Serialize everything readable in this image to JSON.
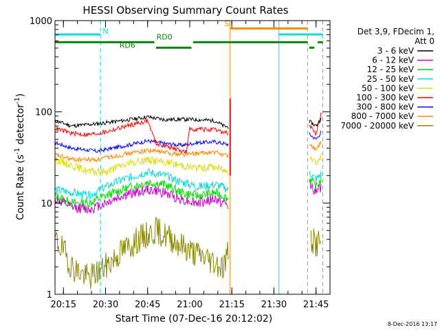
{
  "chart_data": {
    "type": "line",
    "title": "HESSI Observing Summary Count Rates",
    "xlabel": "Start Time (07-Dec-16 20:12:02)",
    "ylabel_main": "Count Rate (s",
    "ylabel_sup1": "-1",
    "ylabel_mid": " detector",
    "ylabel_sup2": "-1",
    "ylabel_end": ")",
    "y_scale": "log",
    "ylim": [
      1,
      1000
    ],
    "xlim": [
      20.2,
      21.833
    ],
    "x_ticks": [
      {
        "value": 20.25,
        "label": "20:15"
      },
      {
        "value": 20.5,
        "label": "20:30"
      },
      {
        "value": 20.75,
        "label": "20:45"
      },
      {
        "value": 21.0,
        "label": "21:00"
      },
      {
        "value": 21.25,
        "label": "21:15"
      },
      {
        "value": 21.5,
        "label": "21:30"
      },
      {
        "value": 21.75,
        "label": "21:45"
      }
    ],
    "y_ticks": [
      {
        "value": 1,
        "label": "1"
      },
      {
        "value": 10,
        "label": "10"
      },
      {
        "value": 100,
        "label": "100"
      },
      {
        "value": 1000,
        "label": "1000"
      }
    ],
    "legend_header": [
      "Det 3,9, FDecim 1,",
      "Att 0"
    ],
    "legend_position": "right",
    "series": [
      {
        "name": "3 - 6 keV",
        "color": "#000000",
        "seed": 11,
        "seg1": [
          [
            20.2,
            80
          ],
          [
            20.3,
            70
          ],
          [
            20.45,
            74
          ],
          [
            20.6,
            80
          ],
          [
            20.75,
            88
          ],
          [
            20.85,
            82
          ],
          [
            20.95,
            83
          ],
          [
            21.05,
            82
          ],
          [
            21.15,
            80
          ],
          [
            21.2,
            70
          ],
          [
            21.23,
            68
          ]
        ],
        "seg2": [
          [
            21.71,
            78
          ],
          [
            21.75,
            70
          ],
          [
            21.78,
            84
          ]
        ],
        "noise": 0.05
      },
      {
        "name": "6 - 12 keV",
        "color": "#cc00cc",
        "seed": 12,
        "seg1": [
          [
            20.2,
            11
          ],
          [
            20.3,
            9
          ],
          [
            20.4,
            8.5
          ],
          [
            20.5,
            10
          ],
          [
            20.6,
            12
          ],
          [
            20.75,
            14
          ],
          [
            20.85,
            13
          ],
          [
            20.95,
            11
          ],
          [
            21.05,
            10
          ],
          [
            21.15,
            11
          ],
          [
            21.2,
            10
          ],
          [
            21.23,
            9
          ]
        ],
        "seg2": [
          [
            21.71,
            17
          ],
          [
            21.75,
            13
          ],
          [
            21.78,
            15
          ]
        ],
        "noise": 0.13
      },
      {
        "name": "12 - 25 keV",
        "color": "#00dd00",
        "seed": 13,
        "seg1": [
          [
            20.2,
            12
          ],
          [
            20.3,
            10
          ],
          [
            20.4,
            10
          ],
          [
            20.5,
            12
          ],
          [
            20.6,
            14
          ],
          [
            20.75,
            17
          ],
          [
            20.85,
            16
          ],
          [
            20.95,
            13
          ],
          [
            21.05,
            12
          ],
          [
            21.15,
            13
          ],
          [
            21.2,
            12
          ],
          [
            21.23,
            11
          ]
        ],
        "seg2": [
          [
            21.71,
            19
          ],
          [
            21.75,
            15
          ],
          [
            21.78,
            18
          ]
        ],
        "noise": 0.12
      },
      {
        "name": "25 - 50 keV",
        "color": "#00dddd",
        "seed": 14,
        "seg1": [
          [
            20.2,
            14
          ],
          [
            20.3,
            13
          ],
          [
            20.4,
            12
          ],
          [
            20.5,
            15
          ],
          [
            20.6,
            18
          ],
          [
            20.75,
            22
          ],
          [
            20.85,
            20
          ],
          [
            20.95,
            17
          ],
          [
            21.05,
            15
          ],
          [
            21.15,
            16
          ],
          [
            21.2,
            15
          ],
          [
            21.23,
            14
          ]
        ],
        "seg2": [
          [
            21.71,
            22
          ],
          [
            21.75,
            18
          ],
          [
            21.78,
            21
          ]
        ],
        "noise": 0.11
      },
      {
        "name": "50 - 100 keV",
        "color": "#dddd00",
        "seed": 15,
        "seg1": [
          [
            20.2,
            30
          ],
          [
            20.3,
            26
          ],
          [
            20.4,
            22
          ],
          [
            20.5,
            22
          ],
          [
            20.6,
            26
          ],
          [
            20.75,
            30
          ],
          [
            20.85,
            28
          ],
          [
            20.95,
            26
          ],
          [
            21.05,
            24
          ],
          [
            21.15,
            25
          ],
          [
            21.2,
            23
          ],
          [
            21.23,
            22
          ]
        ],
        "seg2": [
          [
            21.71,
            34
          ],
          [
            21.75,
            28
          ],
          [
            21.78,
            32
          ]
        ],
        "noise": 0.1
      },
      {
        "name": "100 - 300 keV",
        "color": "#ff0000",
        "seed": 16,
        "seg1": [
          [
            20.2,
            66
          ],
          [
            20.3,
            58
          ],
          [
            20.4,
            56
          ],
          [
            20.5,
            60
          ],
          [
            20.6,
            68
          ],
          [
            20.75,
            80
          ],
          [
            20.8,
            45
          ],
          [
            20.9,
            40
          ],
          [
            20.98,
            36
          ],
          [
            21.0,
            65
          ],
          [
            21.1,
            64
          ],
          [
            21.15,
            63
          ],
          [
            21.2,
            60
          ],
          [
            21.23,
            58
          ]
        ],
        "seg2": [
          [
            21.71,
            70
          ],
          [
            21.75,
            58
          ],
          [
            21.78,
            95
          ]
        ],
        "noise": 0.06
      },
      {
        "name": "300 - 800 keV",
        "color": "#0000ff",
        "seed": 17,
        "seg1": [
          [
            20.2,
            46
          ],
          [
            20.3,
            40
          ],
          [
            20.45,
            37
          ],
          [
            20.6,
            42
          ],
          [
            20.75,
            48
          ],
          [
            20.85,
            45
          ],
          [
            20.95,
            43
          ],
          [
            21.05,
            46
          ],
          [
            21.15,
            47
          ],
          [
            21.2,
            45
          ],
          [
            21.23,
            44
          ]
        ],
        "seg2": [
          [
            21.71,
            57
          ],
          [
            21.75,
            50
          ],
          [
            21.78,
            60
          ]
        ],
        "noise": 0.05
      },
      {
        "name": "800 - 7000 keV",
        "color": "#ff8800",
        "seed": 18,
        "seg1": [
          [
            20.2,
            34
          ],
          [
            20.3,
            30
          ],
          [
            20.45,
            30
          ],
          [
            20.6,
            34
          ],
          [
            20.75,
            38
          ],
          [
            20.85,
            36
          ],
          [
            20.95,
            34
          ],
          [
            21.05,
            35
          ],
          [
            21.15,
            36
          ],
          [
            21.2,
            34
          ],
          [
            21.23,
            33
          ]
        ],
        "seg2": [
          [
            21.71,
            45
          ],
          [
            21.75,
            38
          ],
          [
            21.78,
            46
          ]
        ],
        "noise": 0.06
      },
      {
        "name": "7000 - 20000 keV",
        "color": "#888800",
        "seed": 19,
        "seg1": [
          [
            20.2,
            4
          ],
          [
            20.25,
            3
          ],
          [
            20.3,
            2
          ],
          [
            20.4,
            1.5
          ],
          [
            20.5,
            2
          ],
          [
            20.6,
            3
          ],
          [
            20.7,
            4
          ],
          [
            20.8,
            5
          ],
          [
            20.9,
            4
          ],
          [
            21.0,
            3
          ],
          [
            21.1,
            2.5
          ],
          [
            21.2,
            2
          ],
          [
            21.23,
            3
          ]
        ],
        "seg2": [
          [
            21.72,
            4
          ],
          [
            21.75,
            3.5
          ],
          [
            21.78,
            4
          ]
        ],
        "noise": 0.35
      }
    ],
    "flare_spike": {
      "x": 21.24,
      "y_low": 20,
      "y_high": 140
    },
    "vlines": [
      {
        "x": 20.2,
        "color": "#00dddd",
        "style": "solid"
      },
      {
        "x": 20.47,
        "color": "#00dddd",
        "style": "dashed"
      },
      {
        "x": 21.24,
        "color": "#ff8800",
        "style": "solid"
      },
      {
        "x": 21.53,
        "color": "#00dddd",
        "style": "solid"
      },
      {
        "x": 21.7,
        "color": "#ff8800",
        "style": "dashed"
      },
      {
        "x": 21.79,
        "color": "#00dddd",
        "style": "dashed"
      }
    ],
    "annotations": [
      {
        "text": "N",
        "color": "#00dddd",
        "x": 20.5,
        "y": 720
      },
      {
        "text": "S",
        "color": "#ff8800",
        "x": 21.22,
        "y": 870
      },
      {
        "text": "RD0",
        "color": "#008800",
        "x": 20.85,
        "y": 620
      },
      {
        "text": "RD6",
        "color": "#008800",
        "x": 20.63,
        "y": 505
      }
    ],
    "bars": [
      {
        "color": "#00dddd",
        "x0": 20.2,
        "x1": 20.47,
        "y": 705
      },
      {
        "color": "#00dddd",
        "x0": 21.53,
        "x1": 21.79,
        "y": 705
      },
      {
        "color": "#ff8800",
        "x0": 21.24,
        "x1": 21.7,
        "y": 820
      },
      {
        "color": "#008800",
        "x0": 20.2,
        "x1": 20.79,
        "y": 580
      },
      {
        "color": "#008800",
        "x0": 21.02,
        "x1": 21.7,
        "y": 580
      },
      {
        "color": "#008800",
        "x0": 21.76,
        "x1": 21.79,
        "y": 580
      },
      {
        "color": "#008800",
        "x0": 20.8,
        "x1": 21.01,
        "y": 505
      },
      {
        "color": "#008800",
        "x0": 21.71,
        "x1": 21.74,
        "y": 505
      }
    ]
  },
  "footer_date": "8-Dec-2016 13:17"
}
